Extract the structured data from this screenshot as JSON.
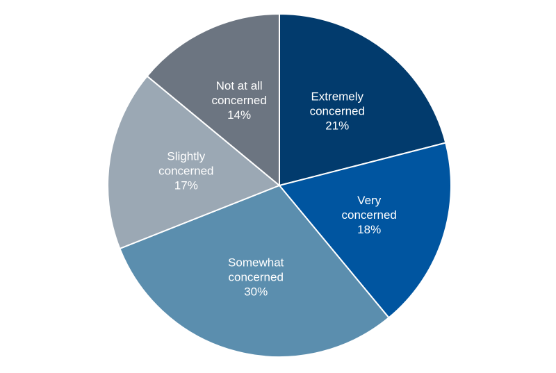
{
  "chart_data": {
    "type": "pie",
    "title": "",
    "slices": [
      {
        "label": "Extremely concerned",
        "value": 21,
        "value_label": "21%",
        "color": "#023b6d"
      },
      {
        "label": "Very concerned",
        "value": 18,
        "value_label": "18%",
        "color": "#0055a0"
      },
      {
        "label": "Somewhat concerned",
        "value": 30,
        "value_label": "30%",
        "color": "#5b8eae"
      },
      {
        "label": "Slightly concerned",
        "value": 17,
        "value_label": "17%",
        "color": "#9ba8b4"
      },
      {
        "label": "Not at all concerned",
        "value": 14,
        "value_label": "14%",
        "color": "#6c7581"
      }
    ],
    "label_lines": [
      [
        "Extremely",
        "concerned"
      ],
      [
        "Very",
        "concerned"
      ],
      [
        "Somewhat",
        "concerned"
      ],
      [
        "Slightly",
        "concerned"
      ],
      [
        "Not at all",
        "concerned"
      ]
    ],
    "start_angle": "12 o'clock",
    "direction": "clockwise",
    "legend": "none"
  }
}
